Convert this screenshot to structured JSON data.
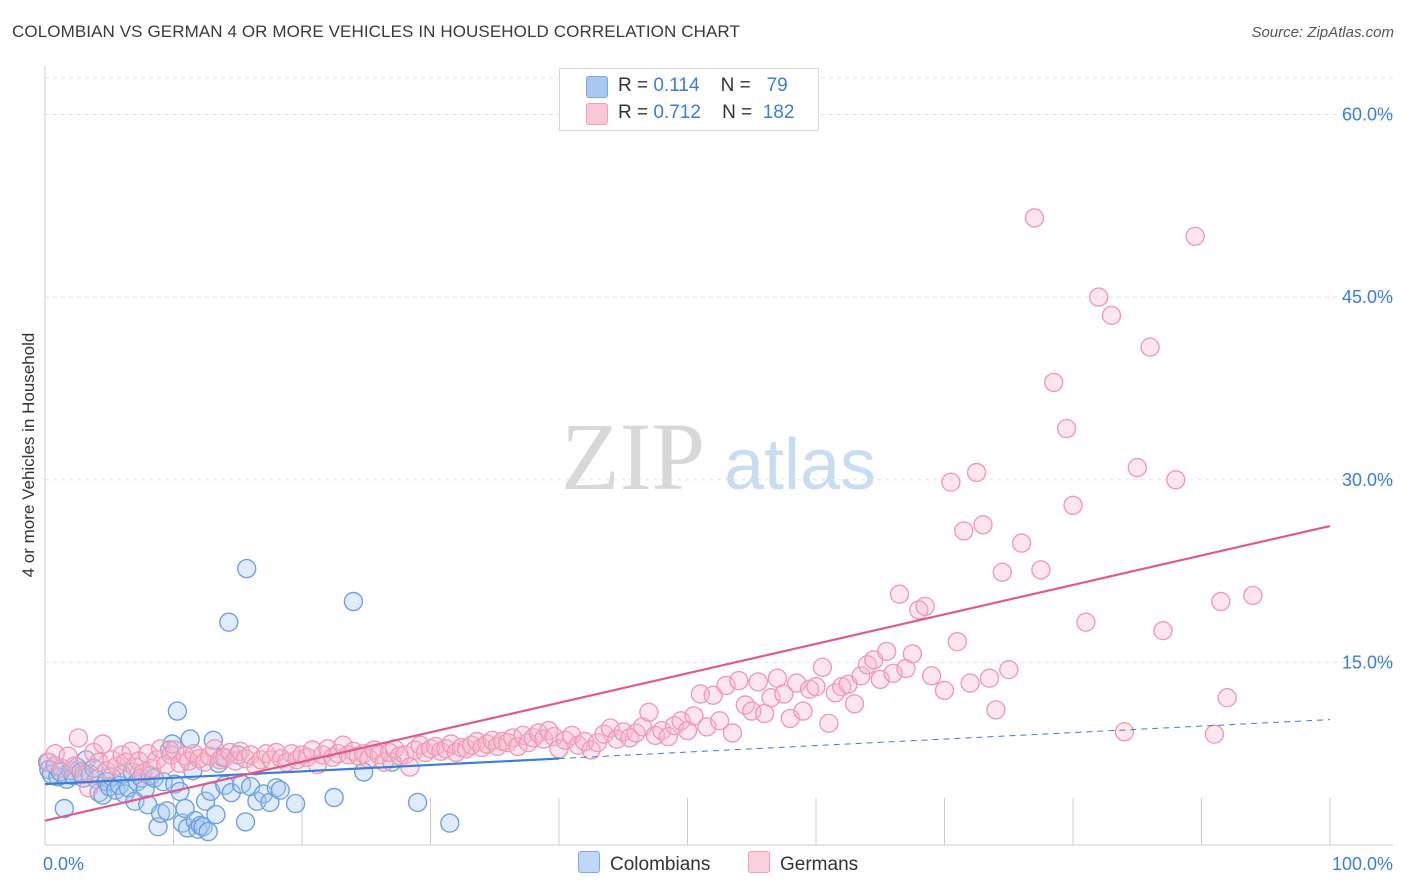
{
  "title": "COLOMBIAN VS GERMAN 4 OR MORE VEHICLES IN HOUSEHOLD CORRELATION CHART",
  "source": "Source: ZipAtlas.com",
  "watermark": {
    "zip": "ZIP",
    "atlas": "atlas"
  },
  "legend_stats": [
    {
      "r_label": "R =",
      "r_value": "0.114",
      "n_label": "N =",
      "n_value": "79",
      "color": "#a8c8f0"
    },
    {
      "r_label": "R =",
      "r_value": "0.712",
      "n_label": "N =",
      "n_value": "182",
      "color": "#f8b8cc"
    }
  ],
  "bottom_legend": [
    {
      "name": "Colombians",
      "color": "#a8c8f0"
    },
    {
      "name": "Germans",
      "color": "#f8b8cc"
    }
  ],
  "chart_data": {
    "type": "scatter",
    "title": "COLOMBIAN VS GERMAN 4 OR MORE VEHICLES IN HOUSEHOLD CORRELATION CHART",
    "xlabel": "",
    "ylabel": "4 or more Vehicles in Household",
    "xlim": [
      0,
      100
    ],
    "ylim": [
      0,
      63
    ],
    "x_ticks": [
      {
        "value": 0,
        "label": "0.0%"
      },
      {
        "value": 100,
        "label": "100.0%"
      }
    ],
    "y_ticks": [
      {
        "value": 15,
        "label": "15.0%"
      },
      {
        "value": 30,
        "label": "30.0%"
      },
      {
        "value": 45,
        "label": "45.0%"
      },
      {
        "value": 60,
        "label": "60.0%"
      }
    ],
    "grid": true,
    "legend_position": "top-center",
    "series": [
      {
        "name": "Colombians",
        "color": "#3b7dd8",
        "fill": "#a8c8f0",
        "trend": {
          "x0": 0,
          "y0": 5.0,
          "x1": 40,
          "y1": 7.1,
          "dash_to_x": 100,
          "dash_to_y": 10.3
        },
        "points": [
          [
            0.2,
            6.8
          ],
          [
            0.3,
            6.2
          ],
          [
            0.5,
            5.8
          ],
          [
            0.8,
            6.5
          ],
          [
            1.0,
            5.6
          ],
          [
            1.2,
            6.0
          ],
          [
            1.5,
            3.0
          ],
          [
            1.7,
            5.4
          ],
          [
            2.0,
            6.1
          ],
          [
            2.2,
            5.7
          ],
          [
            2.5,
            6.4
          ],
          [
            2.8,
            6.0
          ],
          [
            3.0,
            5.5
          ],
          [
            3.2,
            7.0
          ],
          [
            3.5,
            5.8
          ],
          [
            3.8,
            6.3
          ],
          [
            4.0,
            5.4
          ],
          [
            4.2,
            4.3
          ],
          [
            4.5,
            4.1
          ],
          [
            4.8,
            5.2
          ],
          [
            5.0,
            4.8
          ],
          [
            5.2,
            5.6
          ],
          [
            5.5,
            4.5
          ],
          [
            5.8,
            4.9
          ],
          [
            6.0,
            5.8
          ],
          [
            6.2,
            4.2
          ],
          [
            6.5,
            4.7
          ],
          [
            6.8,
            6.0
          ],
          [
            7.0,
            3.6
          ],
          [
            7.2,
            5.2
          ],
          [
            7.5,
            5.5
          ],
          [
            7.8,
            4.6
          ],
          [
            8.0,
            3.3
          ],
          [
            8.2,
            5.7
          ],
          [
            8.5,
            5.5
          ],
          [
            8.8,
            1.5
          ],
          [
            9.0,
            2.6
          ],
          [
            9.2,
            5.2
          ],
          [
            9.5,
            2.8
          ],
          [
            9.7,
            7.8
          ],
          [
            9.9,
            8.3
          ],
          [
            10.1,
            5.0
          ],
          [
            10.3,
            11.0
          ],
          [
            10.5,
            4.4
          ],
          [
            10.7,
            1.8
          ],
          [
            10.9,
            3.0
          ],
          [
            11.1,
            1.4
          ],
          [
            11.3,
            8.7
          ],
          [
            11.5,
            6.1
          ],
          [
            11.7,
            2.0
          ],
          [
            11.9,
            1.3
          ],
          [
            12.1,
            1.6
          ],
          [
            12.3,
            1.5
          ],
          [
            12.5,
            3.6
          ],
          [
            12.7,
            1.1
          ],
          [
            12.9,
            4.4
          ],
          [
            13.1,
            8.6
          ],
          [
            13.3,
            2.5
          ],
          [
            13.5,
            6.7
          ],
          [
            13.8,
            7.2
          ],
          [
            14.0,
            4.9
          ],
          [
            14.5,
            4.3
          ],
          [
            15.0,
            7.4
          ],
          [
            15.3,
            5.0
          ],
          [
            15.6,
            1.9
          ],
          [
            16.0,
            4.8
          ],
          [
            16.5,
            3.6
          ],
          [
            17.0,
            4.2
          ],
          [
            17.5,
            3.5
          ],
          [
            18.0,
            4.7
          ],
          [
            18.3,
            4.5
          ],
          [
            19.5,
            3.4
          ],
          [
            14.3,
            18.3
          ],
          [
            15.7,
            22.7
          ],
          [
            22.5,
            3.9
          ],
          [
            24.0,
            20.0
          ],
          [
            24.8,
            6.0
          ],
          [
            27.0,
            6.8
          ],
          [
            29.0,
            3.5
          ],
          [
            31.5,
            1.8
          ]
        ]
      },
      {
        "name": "Germans",
        "color": "#e05a8a",
        "fill": "#f8b8cc",
        "trend": {
          "x0": 0,
          "y0": 2.0,
          "x1": 100,
          "y1": 26.2
        },
        "points": [
          [
            0.3,
            6.8
          ],
          [
            0.8,
            7.5
          ],
          [
            1.3,
            6.3
          ],
          [
            1.8,
            7.3
          ],
          [
            2.3,
            6.5
          ],
          [
            2.6,
            8.8
          ],
          [
            3.0,
            5.8
          ],
          [
            3.4,
            4.7
          ],
          [
            3.8,
            7.6
          ],
          [
            4.2,
            6.8
          ],
          [
            4.5,
            8.3
          ],
          [
            4.8,
            6.1
          ],
          [
            5.2,
            7.0
          ],
          [
            5.6,
            6.5
          ],
          [
            6.0,
            7.4
          ],
          [
            6.3,
            6.8
          ],
          [
            6.7,
            7.7
          ],
          [
            7.0,
            6.4
          ],
          [
            7.3,
            6.9
          ],
          [
            7.6,
            5.9
          ],
          [
            8.0,
            7.5
          ],
          [
            8.3,
            6.3
          ],
          [
            8.7,
            7.0
          ],
          [
            9.0,
            7.9
          ],
          [
            9.4,
            6.6
          ],
          [
            9.8,
            7.4
          ],
          [
            10.1,
            7.8
          ],
          [
            10.5,
            6.7
          ],
          [
            10.9,
            7.3
          ],
          [
            11.2,
            6.9
          ],
          [
            11.6,
            7.5
          ],
          [
            12.0,
            7.1
          ],
          [
            12.4,
            6.8
          ],
          [
            12.8,
            7.3
          ],
          [
            13.2,
            7.9
          ],
          [
            13.6,
            7.0
          ],
          [
            14.0,
            7.2
          ],
          [
            14.4,
            7.6
          ],
          [
            14.8,
            6.9
          ],
          [
            15.2,
            7.7
          ],
          [
            15.6,
            7.1
          ],
          [
            16.0,
            7.4
          ],
          [
            16.4,
            6.5
          ],
          [
            16.8,
            7.0
          ],
          [
            17.2,
            7.5
          ],
          [
            17.6,
            7.0
          ],
          [
            18.0,
            7.6
          ],
          [
            18.4,
            7.1
          ],
          [
            18.8,
            6.8
          ],
          [
            19.2,
            7.5
          ],
          [
            19.6,
            7.0
          ],
          [
            20.0,
            7.4
          ],
          [
            20.4,
            7.2
          ],
          [
            20.8,
            7.8
          ],
          [
            21.2,
            6.6
          ],
          [
            21.6,
            7.4
          ],
          [
            22.0,
            7.9
          ],
          [
            22.4,
            7.2
          ],
          [
            22.8,
            7.5
          ],
          [
            23.2,
            8.2
          ],
          [
            23.6,
            7.4
          ],
          [
            24.0,
            7.7
          ],
          [
            24.4,
            7.3
          ],
          [
            24.8,
            7.5
          ],
          [
            25.2,
            7.1
          ],
          [
            25.6,
            7.8
          ],
          [
            26.0,
            7.4
          ],
          [
            26.4,
            6.8
          ],
          [
            26.8,
            7.6
          ],
          [
            27.2,
            7.9
          ],
          [
            27.6,
            7.3
          ],
          [
            28.0,
            7.4
          ],
          [
            28.4,
            6.4
          ],
          [
            28.8,
            7.8
          ],
          [
            29.2,
            8.2
          ],
          [
            29.6,
            7.6
          ],
          [
            30.0,
            7.9
          ],
          [
            30.4,
            8.1
          ],
          [
            30.8,
            7.7
          ],
          [
            31.2,
            7.9
          ],
          [
            31.6,
            8.3
          ],
          [
            32.0,
            7.6
          ],
          [
            32.4,
            8.0
          ],
          [
            32.8,
            7.9
          ],
          [
            33.2,
            8.2
          ],
          [
            33.6,
            8.5
          ],
          [
            34.0,
            8.0
          ],
          [
            34.4,
            8.3
          ],
          [
            34.8,
            8.6
          ],
          [
            35.2,
            8.1
          ],
          [
            35.6,
            8.5
          ],
          [
            36.0,
            8.4
          ],
          [
            36.4,
            8.8
          ],
          [
            36.8,
            8.1
          ],
          [
            37.2,
            9.0
          ],
          [
            37.6,
            8.4
          ],
          [
            38.0,
            8.8
          ],
          [
            38.4,
            9.2
          ],
          [
            38.8,
            8.7
          ],
          [
            39.2,
            9.4
          ],
          [
            39.6,
            8.9
          ],
          [
            40.0,
            7.9
          ],
          [
            40.5,
            8.6
          ],
          [
            41.0,
            9.0
          ],
          [
            41.5,
            8.2
          ],
          [
            42.0,
            8.5
          ],
          [
            42.5,
            7.8
          ],
          [
            43.0,
            8.4
          ],
          [
            43.5,
            9.1
          ],
          [
            44.0,
            9.6
          ],
          [
            44.5,
            8.7
          ],
          [
            45.0,
            9.3
          ],
          [
            45.5,
            8.8
          ],
          [
            46.0,
            9.2
          ],
          [
            46.5,
            9.7
          ],
          [
            47.0,
            10.9
          ],
          [
            47.5,
            9.0
          ],
          [
            48.0,
            9.4
          ],
          [
            48.5,
            8.9
          ],
          [
            49.0,
            9.8
          ],
          [
            49.5,
            10.2
          ],
          [
            50.0,
            9.4
          ],
          [
            50.5,
            10.6
          ],
          [
            51.0,
            12.4
          ],
          [
            51.5,
            9.7
          ],
          [
            52.0,
            12.3
          ],
          [
            52.5,
            10.2
          ],
          [
            53.0,
            13.1
          ],
          [
            53.5,
            9.2
          ],
          [
            54.0,
            13.5
          ],
          [
            54.5,
            11.5
          ],
          [
            55.0,
            11.0
          ],
          [
            55.5,
            13.4
          ],
          [
            56.0,
            10.8
          ],
          [
            56.5,
            12.1
          ],
          [
            57.0,
            13.7
          ],
          [
            57.5,
            12.4
          ],
          [
            58.0,
            10.4
          ],
          [
            58.5,
            13.3
          ],
          [
            59.0,
            11.0
          ],
          [
            59.5,
            12.8
          ],
          [
            60.0,
            13.0
          ],
          [
            60.5,
            14.6
          ],
          [
            61.0,
            10.0
          ],
          [
            61.5,
            12.5
          ],
          [
            62.0,
            13.0
          ],
          [
            62.5,
            13.2
          ],
          [
            63.0,
            11.6
          ],
          [
            63.5,
            13.9
          ],
          [
            64.0,
            14.8
          ],
          [
            64.5,
            15.2
          ],
          [
            65.0,
            13.6
          ],
          [
            65.5,
            15.9
          ],
          [
            66.0,
            14.1
          ],
          [
            66.5,
            20.6
          ],
          [
            67.0,
            14.5
          ],
          [
            67.5,
            15.7
          ],
          [
            68.0,
            19.3
          ],
          [
            68.5,
            19.6
          ],
          [
            69.0,
            13.9
          ],
          [
            70.0,
            12.7
          ],
          [
            70.5,
            29.8
          ],
          [
            71.0,
            16.7
          ],
          [
            71.5,
            25.8
          ],
          [
            72.0,
            13.3
          ],
          [
            72.5,
            30.6
          ],
          [
            73.0,
            26.3
          ],
          [
            73.5,
            13.7
          ],
          [
            74.0,
            11.1
          ],
          [
            74.5,
            22.4
          ],
          [
            75.0,
            14.4
          ],
          [
            76.0,
            24.8
          ],
          [
            77.5,
            22.6
          ],
          [
            78.5,
            38.0
          ],
          [
            79.5,
            34.2
          ],
          [
            80.0,
            27.9
          ],
          [
            81.0,
            18.3
          ],
          [
            82.0,
            45.0
          ],
          [
            83.0,
            43.5
          ],
          [
            84.0,
            9.3
          ],
          [
            85.0,
            31.0
          ],
          [
            86.0,
            40.9
          ],
          [
            87.0,
            17.6
          ],
          [
            88.0,
            30.0
          ],
          [
            91.0,
            9.1
          ],
          [
            92.0,
            12.1
          ],
          [
            77.0,
            51.5
          ],
          [
            89.5,
            50.0
          ],
          [
            91.5,
            20.0
          ],
          [
            94.0,
            20.5
          ]
        ]
      }
    ]
  }
}
